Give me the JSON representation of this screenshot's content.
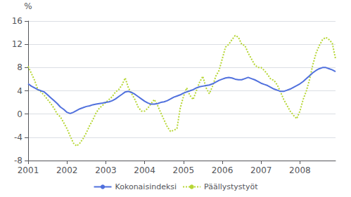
{
  "chart_data": {
    "type": "line",
    "ylabel": "%",
    "xlim": [
      2001.0,
      2008.917
    ],
    "xticks": [
      2001,
      2002,
      2003,
      2004,
      2005,
      2006,
      2007,
      2008
    ],
    "ylim": [
      -8,
      16
    ],
    "yticks": [
      -8,
      -4,
      0,
      4,
      8,
      12,
      16
    ],
    "grid": true,
    "legend": "bottom",
    "x": [
      2001.0,
      2001.083,
      2001.167,
      2001.25,
      2001.333,
      2001.417,
      2001.5,
      2001.583,
      2001.667,
      2001.75,
      2001.833,
      2001.917,
      2002.0,
      2002.083,
      2002.167,
      2002.25,
      2002.333,
      2002.417,
      2002.5,
      2002.583,
      2002.667,
      2002.75,
      2002.833,
      2002.917,
      2003.0,
      2003.083,
      2003.167,
      2003.25,
      2003.333,
      2003.417,
      2003.5,
      2003.583,
      2003.667,
      2003.75,
      2003.833,
      2003.917,
      2004.0,
      2004.083,
      2004.167,
      2004.25,
      2004.333,
      2004.417,
      2004.5,
      2004.583,
      2004.667,
      2004.75,
      2004.833,
      2004.917,
      2005.0,
      2005.083,
      2005.167,
      2005.25,
      2005.333,
      2005.417,
      2005.5,
      2005.583,
      2005.667,
      2005.75,
      2005.833,
      2005.917,
      2006.0,
      2006.083,
      2006.167,
      2006.25,
      2006.333,
      2006.417,
      2006.5,
      2006.583,
      2006.667,
      2006.75,
      2006.833,
      2006.917,
      2007.0,
      2007.083,
      2007.167,
      2007.25,
      2007.333,
      2007.417,
      2007.5,
      2007.583,
      2007.667,
      2007.75,
      2007.833,
      2007.917,
      2008.0,
      2008.083,
      2008.167,
      2008.25,
      2008.333,
      2008.417,
      2008.5,
      2008.583,
      2008.667,
      2008.75,
      2008.833,
      2008.917
    ],
    "series": [
      {
        "name": "Kokonaisindeksi",
        "line_style": "solid",
        "values": [
          5.2,
          4.8,
          4.5,
          4.2,
          4.0,
          3.8,
          3.3,
          2.8,
          2.3,
          1.8,
          1.2,
          0.8,
          0.3,
          0.1,
          0.3,
          0.6,
          0.9,
          1.1,
          1.3,
          1.4,
          1.6,
          1.7,
          1.8,
          1.9,
          2.0,
          2.1,
          2.3,
          2.6,
          3.0,
          3.4,
          3.8,
          3.9,
          3.7,
          3.4,
          3.0,
          2.6,
          2.2,
          1.9,
          1.7,
          1.7,
          1.8,
          2.0,
          2.1,
          2.3,
          2.6,
          2.9,
          3.1,
          3.3,
          3.6,
          3.8,
          4.0,
          4.2,
          4.5,
          4.7,
          4.8,
          4.9,
          5.0,
          5.2,
          5.5,
          5.8,
          6.0,
          6.2,
          6.3,
          6.2,
          6.0,
          5.9,
          5.9,
          6.1,
          6.3,
          6.1,
          5.9,
          5.6,
          5.3,
          5.1,
          4.9,
          4.6,
          4.3,
          4.1,
          3.9,
          3.9,
          4.1,
          4.3,
          4.6,
          4.9,
          5.2,
          5.6,
          6.1,
          6.6,
          7.1,
          7.5,
          7.8,
          8.0,
          8.0,
          7.8,
          7.6,
          7.3
        ]
      },
      {
        "name": "Päällystystyöt",
        "line_style": "dotted",
        "values": [
          8.2,
          7.0,
          5.8,
          4.2,
          3.8,
          3.2,
          2.5,
          1.8,
          1.0,
          0.0,
          -0.5,
          -1.5,
          -2.5,
          -3.8,
          -5.0,
          -5.5,
          -5.0,
          -4.2,
          -3.2,
          -2.0,
          -1.0,
          0.2,
          1.0,
          1.5,
          2.0,
          2.5,
          3.0,
          3.8,
          4.2,
          5.0,
          6.2,
          4.5,
          3.5,
          2.5,
          1.2,
          0.5,
          0.5,
          1.0,
          1.8,
          2.5,
          1.5,
          0.2,
          -1.0,
          -2.2,
          -3.0,
          -2.8,
          -2.5,
          1.0,
          3.0,
          4.5,
          3.2,
          2.5,
          4.0,
          5.5,
          6.5,
          4.5,
          3.5,
          4.8,
          6.5,
          7.5,
          9.5,
          11.5,
          12.0,
          12.8,
          13.5,
          13.2,
          12.0,
          11.8,
          10.5,
          9.5,
          8.5,
          8.0,
          8.0,
          7.5,
          6.8,
          6.0,
          5.8,
          5.0,
          3.8,
          2.5,
          1.5,
          0.5,
          -0.2,
          -0.8,
          0.5,
          2.5,
          4.0,
          6.0,
          8.5,
          10.5,
          11.8,
          12.8,
          13.2,
          12.8,
          12.2,
          9.5
        ]
      }
    ]
  }
}
